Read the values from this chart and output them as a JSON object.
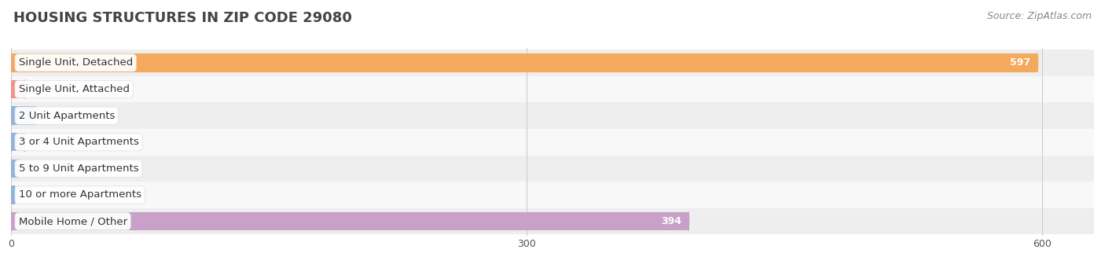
{
  "title": "HOUSING STRUCTURES IN ZIP CODE 29080",
  "source": "Source: ZipAtlas.com",
  "categories": [
    "Single Unit, Detached",
    "Single Unit, Attached",
    "2 Unit Apartments",
    "3 or 4 Unit Apartments",
    "5 to 9 Unit Apartments",
    "10 or more Apartments",
    "Mobile Home / Other"
  ],
  "values": [
    597,
    0,
    14,
    0,
    4,
    2,
    394
  ],
  "bar_colors": [
    "#F5A95C",
    "#F0918A",
    "#92B4D8",
    "#92B4D8",
    "#92B4D8",
    "#92B4D8",
    "#C9A0C8"
  ],
  "bg_row_colors": [
    "#EEEEEE",
    "#F8F8F8"
  ],
  "xlim": [
    0,
    630
  ],
  "xticks": [
    0,
    300,
    600
  ],
  "background_color": "#FFFFFF",
  "title_fontsize": 13,
  "label_fontsize": 9.5,
  "value_fontsize": 9,
  "source_fontsize": 9
}
